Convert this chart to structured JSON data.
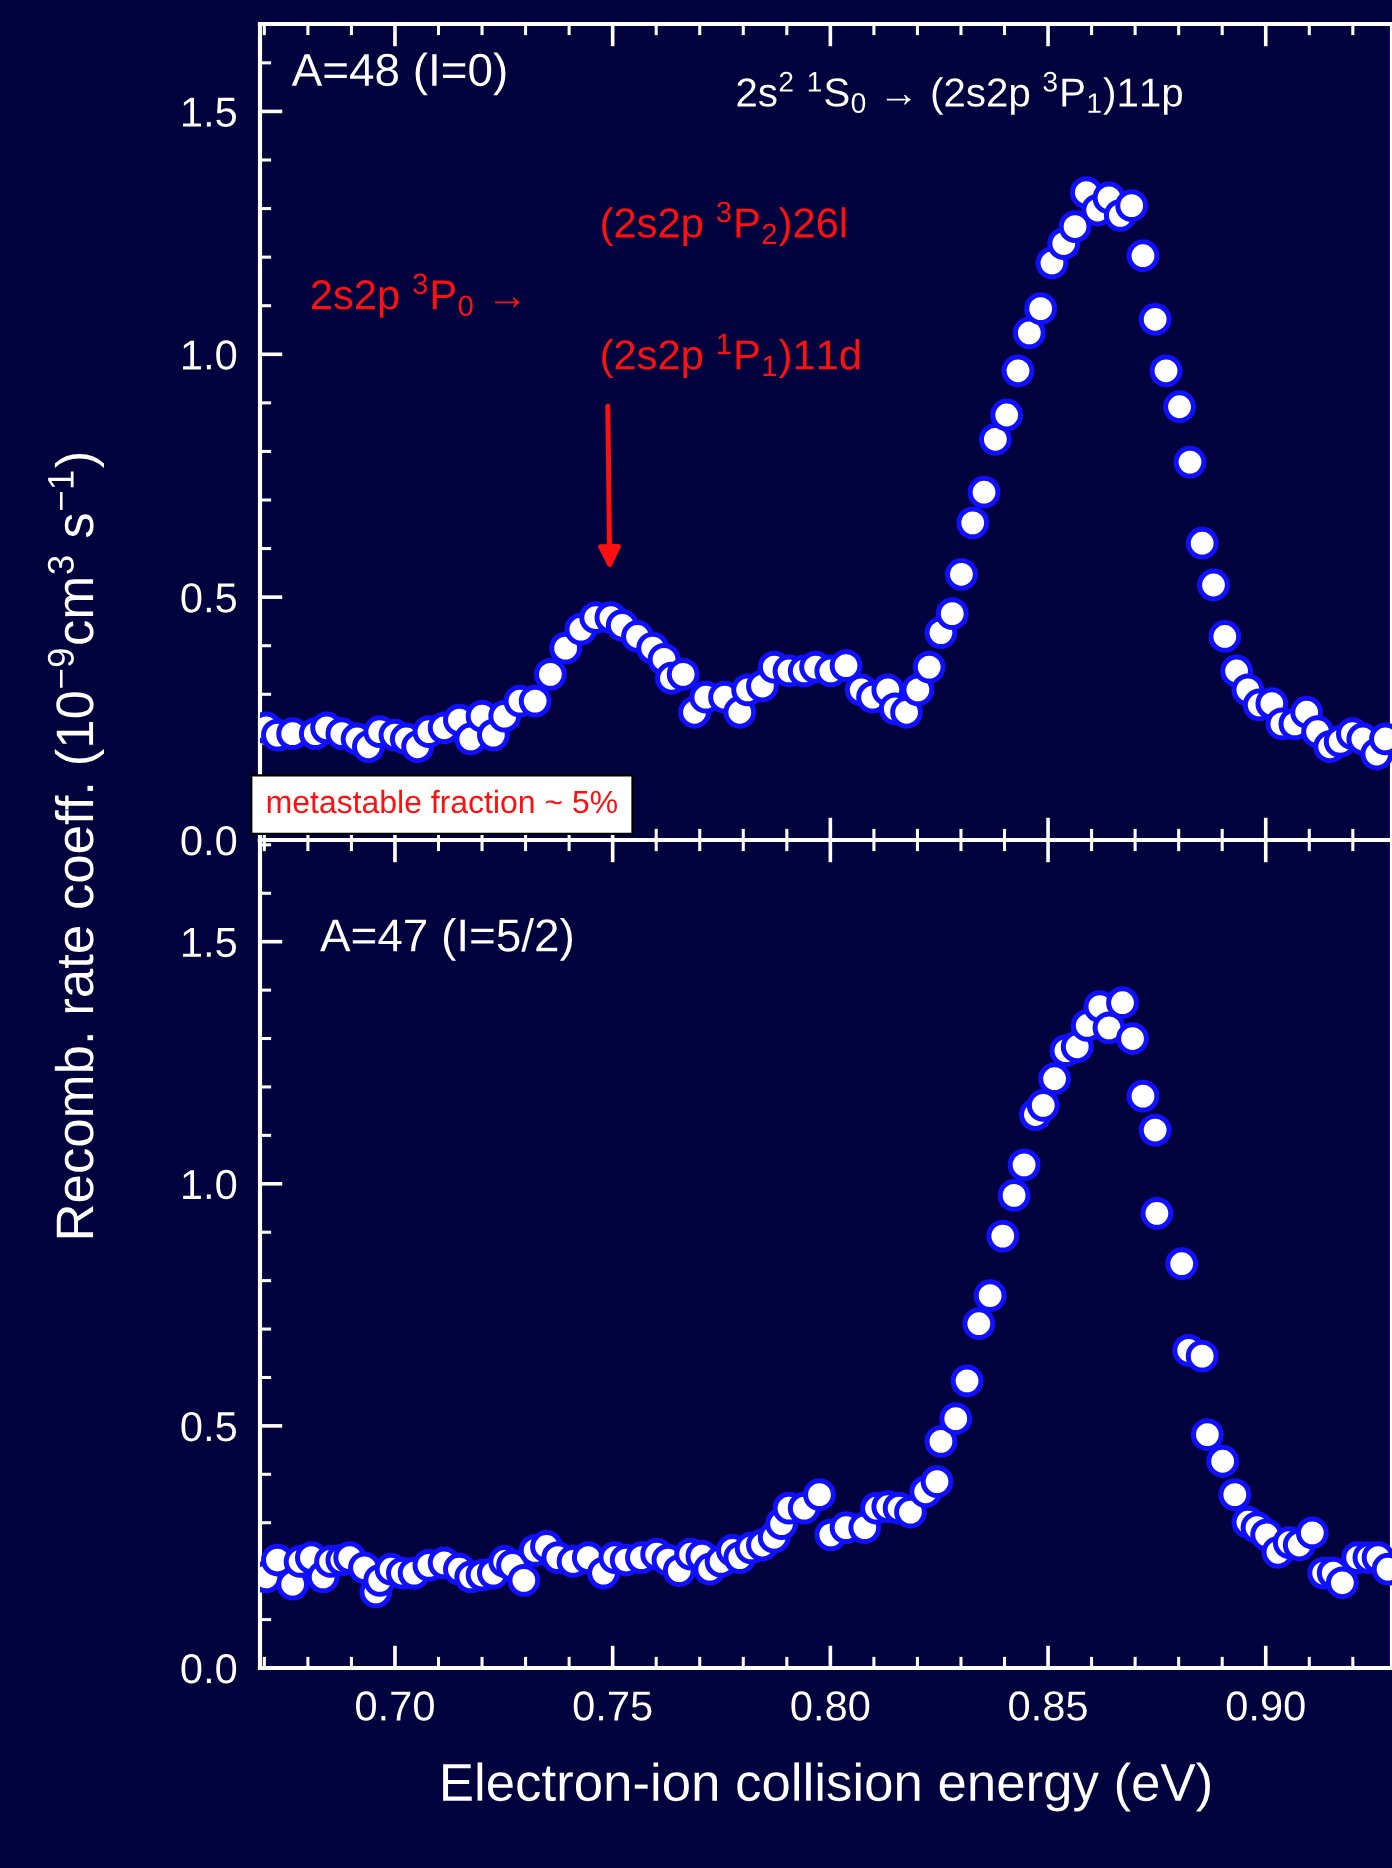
{
  "chart_data": [
    {
      "type": "scatter",
      "ylabel": "Recomb. rate coeff. (10$^{−9}$cm$^{3}$ s$^{−1}$)",
      "annotations": [
        "A=48 (I=0)",
        "2s$^{2}$ $^{1}$S$_{0}$ → (2s2p $^{3}$P$_{1}$)11p",
        "2s2p $^{3}$P$_{0}$ →",
        "(2s2p $^{3}$P$_{2}$)26l",
        "(2s2p $^{1}$P$_{1}$)11d",
        "metastable fraction ~ 5%"
      ],
      "series": [
        {
          "color": "#ffffff",
          "x": [
            0.6704,
            0.673,
            0.6765,
            0.6817,
            0.6843,
            0.6878,
            0.6913,
            0.6939,
            0.6965,
            0.7,
            0.7026,
            0.7052,
            0.7078,
            0.7113,
            0.7148,
            0.7174,
            0.72,
            0.7226,
            0.7252,
            0.7287,
            0.7322,
            0.7357,
            0.7392,
            0.7427,
            0.7461,
            0.7496,
            0.7522,
            0.7557,
            0.7592,
            0.7618,
            0.7635,
            0.7662,
            0.7688,
            0.7714,
            0.7757,
            0.7792,
            0.781,
            0.7844,
            0.7871,
            0.7905,
            0.794,
            0.7966,
            0.8001,
            0.8036,
            0.8071,
            0.8097,
            0.8132,
            0.8149,
            0.8175,
            0.8201,
            0.8227,
            0.8254,
            0.828,
            0.8301,
            0.8327,
            0.8353,
            0.8379,
            0.8405,
            0.8431,
            0.8457,
            0.8483,
            0.8509,
            0.8536,
            0.8562,
            0.8588,
            0.8614,
            0.864,
            0.8666,
            0.8692,
            0.8718,
            0.8746,
            0.8771,
            0.8802,
            0.8826,
            0.8854,
            0.888,
            0.8906,
            0.8933,
            0.8959,
            0.8985,
            0.9014,
            0.9037,
            0.9067,
            0.9094,
            0.9119,
            0.9147,
            0.9171,
            0.9199,
            0.9223,
            0.9255,
            0.9275
          ],
          "values": [
            0.231,
            0.216,
            0.219,
            0.219,
            0.231,
            0.219,
            0.208,
            0.192,
            0.223,
            0.216,
            0.208,
            0.192,
            0.223,
            0.231,
            0.247,
            0.208,
            0.255,
            0.216,
            0.255,
            0.286,
            0.286,
            0.341,
            0.395,
            0.434,
            0.458,
            0.458,
            0.442,
            0.419,
            0.395,
            0.372,
            0.333,
            0.341,
            0.263,
            0.294,
            0.294,
            0.263,
            0.309,
            0.317,
            0.356,
            0.348,
            0.348,
            0.356,
            0.348,
            0.359,
            0.309,
            0.294,
            0.309,
            0.27,
            0.263,
            0.309,
            0.356,
            0.427,
            0.466,
            0.547,
            0.653,
            0.716,
            0.825,
            0.875,
            0.966,
            1.044,
            1.094,
            1.188,
            1.228,
            1.263,
            1.333,
            1.297,
            1.322,
            1.286,
            1.306,
            1.203,
            1.072,
            0.966,
            0.892,
            0.778,
            0.611,
            0.525,
            0.419,
            0.348,
            0.309,
            0.278,
            0.281,
            0.239,
            0.239,
            0.263,
            0.223,
            0.192,
            0.203,
            0.219,
            0.208,
            0.177,
            0.208
          ]
        }
      ],
      "xlim": [
        0.669,
        0.929
      ],
      "ylim": [
        0,
        1.68
      ],
      "xticks": [
        {
          "value": 0.7,
          "label": null
        },
        {
          "value": 0.75,
          "label": null
        },
        {
          "value": 0.8,
          "label": null
        },
        {
          "value": 0.85,
          "label": null
        },
        {
          "value": 0.9,
          "label": null
        }
      ],
      "yticks": [
        {
          "value": 0,
          "label": "0.0"
        },
        {
          "value": 0.5,
          "label": "0.5"
        },
        {
          "value": 1.0,
          "label": "1.0"
        },
        {
          "value": 1.5,
          "label": "1.5"
        }
      ],
      "tick_labels": "y",
      "marker": "circle",
      "grid": false,
      "legend": false
    },
    {
      "type": "scatter",
      "xlabel": "Electron-ion collision energy (eV)",
      "annotations": [
        "A=47 (I=5/2)"
      ],
      "series": [
        {
          "color": "#ffffff",
          "x": [
            0.6704,
            0.673,
            0.6765,
            0.6782,
            0.6808,
            0.6835,
            0.6852,
            0.6878,
            0.6896,
            0.693,
            0.6956,
            0.6965,
            0.6991,
            0.7017,
            0.7044,
            0.7078,
            0.7113,
            0.7148,
            0.7174,
            0.72,
            0.7226,
            0.7252,
            0.727,
            0.7296,
            0.7322,
            0.7348,
            0.7374,
            0.7409,
            0.7444,
            0.7479,
            0.7505,
            0.7531,
            0.7566,
            0.7601,
            0.7627,
            0.7653,
            0.7679,
            0.7705,
            0.7723,
            0.7749,
            0.7775,
            0.7792,
            0.7818,
            0.7844,
            0.7871,
            0.7888,
            0.7905,
            0.794,
            0.7975,
            0.8001,
            0.8036,
            0.8079,
            0.8106,
            0.8132,
            0.8158,
            0.8184,
            0.8219,
            0.8245,
            0.8254,
            0.8288,
            0.8314,
            0.8341,
            0.8367,
            0.8396,
            0.8422,
            0.8445,
            0.8471,
            0.8489,
            0.8515,
            0.8541,
            0.8567,
            0.859,
            0.8619,
            0.864,
            0.8671,
            0.8694,
            0.8718,
            0.8746,
            0.875,
            0.8807,
            0.8823,
            0.8854,
            0.8866,
            0.8901,
            0.8929,
            0.8959,
            0.898,
            0.9002,
            0.9028,
            0.9054,
            0.9077,
            0.9107,
            0.9133,
            0.9155,
            0.9176,
            0.9211,
            0.9237,
            0.9258,
            0.9281
          ],
          "values": [
            0.188,
            0.223,
            0.173,
            0.22,
            0.228,
            0.188,
            0.22,
            0.223,
            0.228,
            0.207,
            0.157,
            0.181,
            0.204,
            0.196,
            0.196,
            0.212,
            0.217,
            0.204,
            0.188,
            0.192,
            0.196,
            0.22,
            0.212,
            0.181,
            0.243,
            0.251,
            0.228,
            0.22,
            0.228,
            0.196,
            0.228,
            0.223,
            0.228,
            0.235,
            0.223,
            0.201,
            0.235,
            0.231,
            0.204,
            0.22,
            0.243,
            0.228,
            0.248,
            0.254,
            0.27,
            0.298,
            0.33,
            0.33,
            0.358,
            0.275,
            0.29,
            0.29,
            0.33,
            0.333,
            0.33,
            0.322,
            0.364,
            0.385,
            0.468,
            0.515,
            0.593,
            0.711,
            0.769,
            0.892,
            0.976,
            1.039,
            1.143,
            1.162,
            1.217,
            1.275,
            1.283,
            1.327,
            1.366,
            1.322,
            1.374,
            1.3,
            1.181,
            1.111,
            0.939,
            0.835,
            0.656,
            0.644,
            0.482,
            0.427,
            0.358,
            0.301,
            0.29,
            0.275,
            0.239,
            0.259,
            0.254,
            0.279,
            0.196,
            0.196,
            0.176,
            0.228,
            0.228,
            0.228,
            0.204
          ]
        }
      ],
      "xlim": [
        0.669,
        0.929
      ],
      "ylim": [
        0,
        1.71
      ],
      "xticks": [
        {
          "value": 0.7,
          "label": "0.70"
        },
        {
          "value": 0.75,
          "label": "0.75"
        },
        {
          "value": 0.8,
          "label": "0.80"
        },
        {
          "value": 0.85,
          "label": "0.85"
        },
        {
          "value": 0.9,
          "label": "0.90"
        }
      ],
      "yticks": [
        {
          "value": 0,
          "label": "0.0"
        },
        {
          "value": 0.5,
          "label": "0.5"
        },
        {
          "value": 1.0,
          "label": "1.0"
        },
        {
          "value": 1.5,
          "label": "1.5"
        }
      ],
      "marker": "circle",
      "grid": false,
      "legend": false
    }
  ]
}
